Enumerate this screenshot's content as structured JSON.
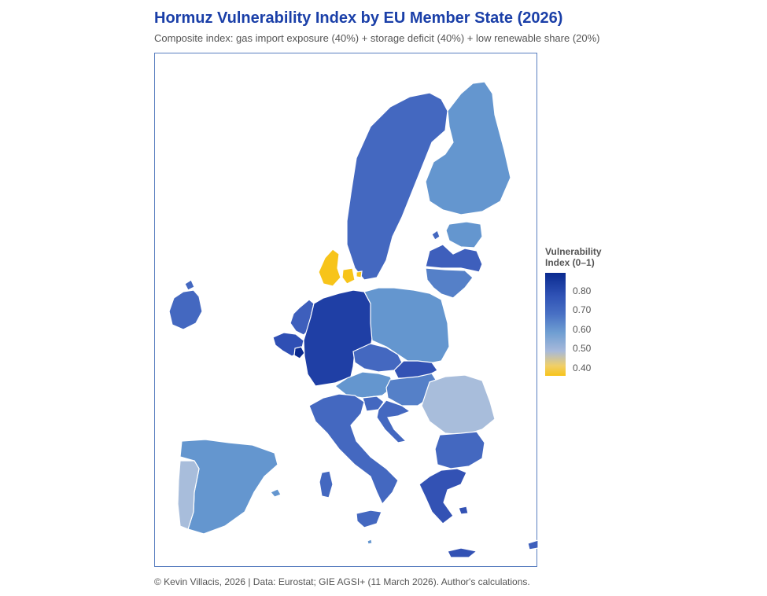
{
  "header": {
    "title": "Hormuz Vulnerability Index by EU Member State (2026)",
    "subtitle": "Composite index: gas import exposure (40%) + storage deficit (40%) + low renewable share (20%)"
  },
  "legend": {
    "title_line1": "Vulnerability",
    "title_line2": "Index (0–1)",
    "ticks": [
      "0.80",
      "0.70",
      "0.60",
      "0.50",
      "0.40"
    ]
  },
  "footer": {
    "credit": "© Kevin Villacis, 2026 | Data: Eurostat; GIE AGSI+ (11 March 2026). Author's calculations."
  },
  "colors": {
    "very_high": "#0a2a8f",
    "high": "#3352b4",
    "mid_high": "#4a6fc4",
    "mid": "#6a9bd0",
    "low_mid": "#a8bddb",
    "low": "#f7c41a"
  },
  "countries": [
    {
      "name": "Sweden",
      "index": 0.72
    },
    {
      "name": "Finland",
      "index": 0.62
    },
    {
      "name": "Estonia",
      "index": 0.62
    },
    {
      "name": "Latvia",
      "index": 0.74
    },
    {
      "name": "Lithuania",
      "index": 0.66
    },
    {
      "name": "Denmark",
      "index": 0.37
    },
    {
      "name": "Ireland",
      "index": 0.73
    },
    {
      "name": "Netherlands",
      "index": 0.76
    },
    {
      "name": "Belgium",
      "index": 0.78
    },
    {
      "name": "Luxembourg",
      "index": 0.88
    },
    {
      "name": "Germany",
      "index": 0.84
    },
    {
      "name": "Poland",
      "index": 0.6
    },
    {
      "name": "Czechia",
      "index": 0.73
    },
    {
      "name": "Slovakia",
      "index": 0.8
    },
    {
      "name": "Austria",
      "index": 0.63
    },
    {
      "name": "Hungary",
      "index": 0.65
    },
    {
      "name": "Slovenia",
      "index": 0.72
    },
    {
      "name": "Croatia",
      "index": 0.73
    },
    {
      "name": "Romania",
      "index": 0.52
    },
    {
      "name": "Bulgaria",
      "index": 0.72
    },
    {
      "name": "Italy",
      "index": 0.72
    },
    {
      "name": "Greece",
      "index": 0.76
    },
    {
      "name": "Spain",
      "index": 0.61
    },
    {
      "name": "Portugal",
      "index": 0.53
    },
    {
      "name": "Cyprus",
      "index": 0.74
    },
    {
      "name": "Malta",
      "index": 0.62
    }
  ]
}
